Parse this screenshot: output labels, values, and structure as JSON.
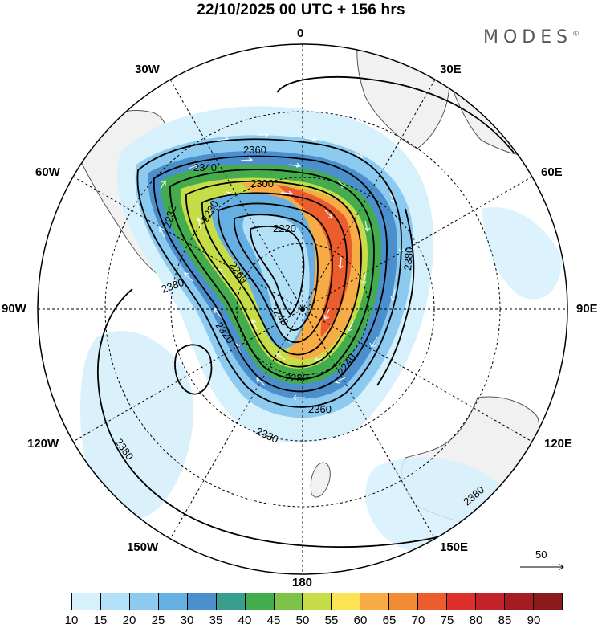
{
  "header": {
    "title": "22/10/2025  00 UTC  + 156 hrs",
    "brand": "MODES",
    "brand_mark": "©"
  },
  "map": {
    "projection": "south polar stereographic",
    "longitude_labels": {
      "top": "0",
      "top_left": "30W",
      "top_right": "30E",
      "upper_left": "60W",
      "upper_right": "60E",
      "left": "90W",
      "right": "90E",
      "lower_left": "120W",
      "lower_right": "120E",
      "bottom_left": "150W",
      "bottom_right": "150E",
      "bottom": "180"
    },
    "contour_labels": [
      "2360",
      "2340",
      "2300",
      "2230",
      "2220",
      "2260",
      "2240",
      "2232",
      "2380",
      "2320",
      "2280",
      "2360",
      "2330",
      "2240",
      "2380",
      "2380",
      "2380"
    ],
    "colors": {
      "land": "#f1f1f1",
      "coast": "#555555",
      "grid": "#000000",
      "contour": "#000000",
      "wind_arrow": "#ffffff"
    }
  },
  "reference_vector": {
    "value": "50"
  },
  "colorbar": {
    "labels": [
      "10",
      "15",
      "20",
      "25",
      "30",
      "35",
      "40",
      "45",
      "50",
      "55",
      "60",
      "65",
      "70",
      "75",
      "80",
      "85",
      "90"
    ],
    "colors": [
      "#ffffff",
      "#d6f0fc",
      "#b2e0f6",
      "#8dcaf0",
      "#66afe2",
      "#4b90cc",
      "#3a9e8f",
      "#43ad4d",
      "#7bc447",
      "#c6dd47",
      "#fbe351",
      "#f8ac45",
      "#f28b35",
      "#ec5d2e",
      "#de2f2d",
      "#c4222a",
      "#a41c22",
      "#8a1a1c"
    ]
  }
}
